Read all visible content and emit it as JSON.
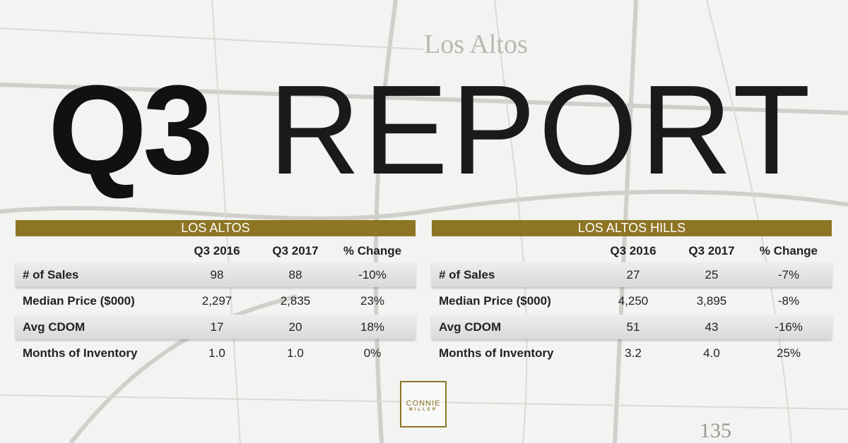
{
  "header": {
    "title_bold": "Q3",
    "title_light": "REPORT"
  },
  "map_labels": [
    "Los Altos",
    "135"
  ],
  "tables": [
    {
      "title": "LOS ALTOS",
      "columns": [
        "Q3 2016",
        "Q3 2017",
        "% Change"
      ],
      "rows": [
        {
          "label": "# of Sales",
          "values": [
            "98",
            "88",
            "-10%"
          ]
        },
        {
          "label": "Median Price ($000)",
          "values": [
            "2,297",
            "2,835",
            "23%"
          ]
        },
        {
          "label": "Avg CDOM",
          "values": [
            "17",
            "20",
            "18%"
          ]
        },
        {
          "label": "Months of Inventory",
          "values": [
            "1.0",
            "1.0",
            "0%"
          ]
        }
      ]
    },
    {
      "title": "LOS ALTOS HILLS",
      "columns": [
        "Q3 2016",
        "Q3 2017",
        "% Change"
      ],
      "rows": [
        {
          "label": "# of Sales",
          "values": [
            "27",
            "25",
            "-7%"
          ]
        },
        {
          "label": "Median Price ($000)",
          "values": [
            "4,250",
            "3,895",
            "-8%"
          ]
        },
        {
          "label": "Avg CDOM",
          "values": [
            "51",
            "43",
            "-16%"
          ]
        },
        {
          "label": "Months of Inventory",
          "values": [
            "3.2",
            "4.0",
            "25%"
          ]
        }
      ]
    }
  ],
  "logo": {
    "line1": "CONNIE",
    "line2": "MILLER"
  }
}
